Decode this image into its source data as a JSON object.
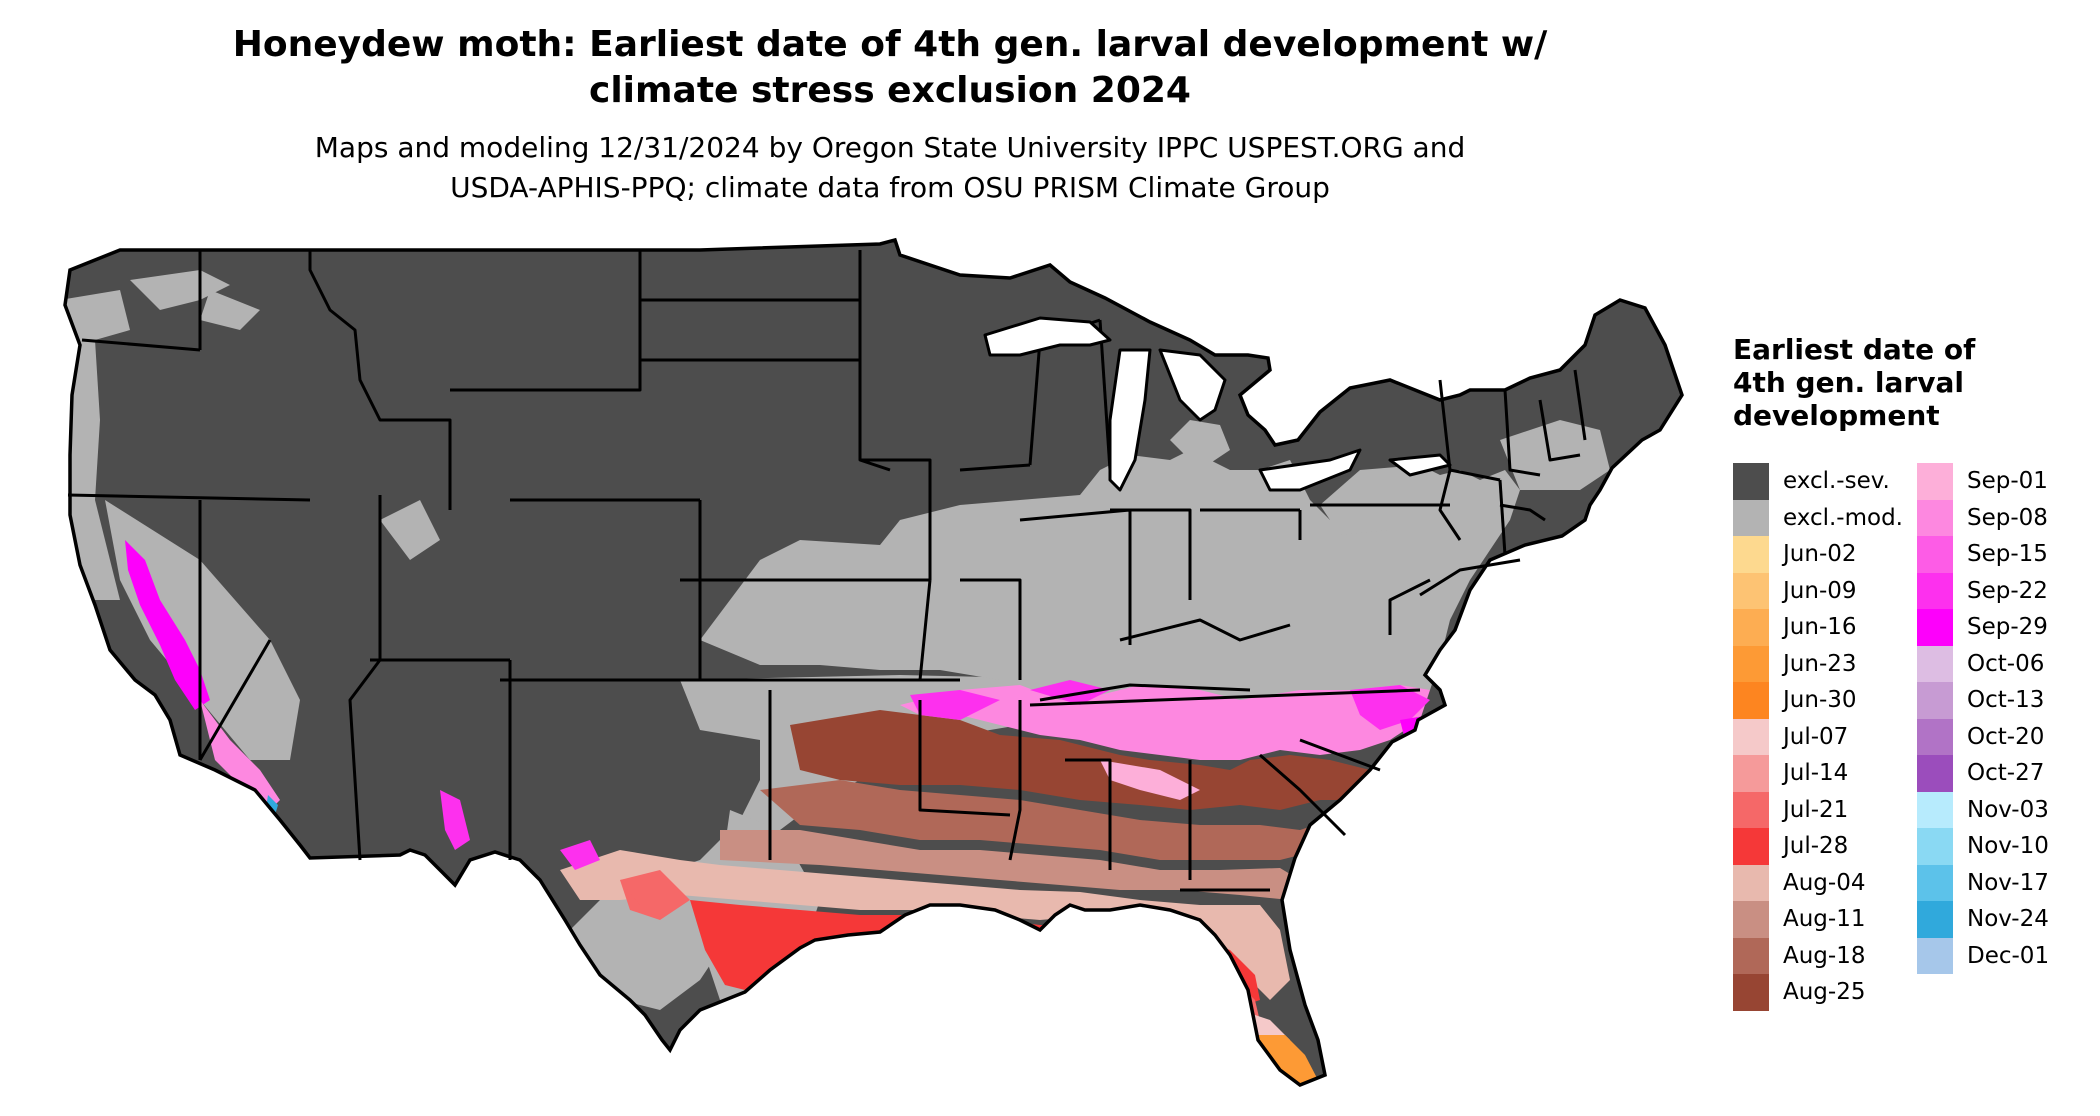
{
  "title": {
    "line1": "Honeydew moth: Earliest date of 4th gen. larval development w/",
    "line2": "climate stress exclusion 2024"
  },
  "subtitle": {
    "line1": "Maps and modeling 12/31/2024 by Oregon State University IPPC USPEST.ORG and",
    "line2": "USDA-APHIS-PPQ; climate data from OSU PRISM Climate Group"
  },
  "legend": {
    "title": "Earliest date of 4th gen. larval development",
    "column1": [
      {
        "label": "excl.-sev.",
        "color": "#4d4d4d"
      },
      {
        "label": "excl.-mod.",
        "color": "#b3b3b3"
      },
      {
        "label": "Jun-02",
        "color": "#fdd98f"
      },
      {
        "label": "Jun-09",
        "color": "#fdc373"
      },
      {
        "label": "Jun-16",
        "color": "#fdad52"
      },
      {
        "label": "Jun-23",
        "color": "#fd9a35"
      },
      {
        "label": "Jun-30",
        "color": "#fd8520"
      },
      {
        "label": "Jul-07",
        "color": "#f5c9c9"
      },
      {
        "label": "Jul-14",
        "color": "#f59a9a"
      },
      {
        "label": "Jul-21",
        "color": "#f56868"
      },
      {
        "label": "Jul-28",
        "color": "#f53838"
      },
      {
        "label": "Aug-04",
        "color": "#e8b9ae"
      },
      {
        "label": "Aug-11",
        "color": "#c98f83"
      },
      {
        "label": "Aug-18",
        "color": "#b06858"
      },
      {
        "label": "Aug-25",
        "color": "#974533"
      }
    ],
    "column2": [
      {
        "label": "Sep-01",
        "color": "#fdafd9"
      },
      {
        "label": "Sep-08",
        "color": "#fd88e0"
      },
      {
        "label": "Sep-15",
        "color": "#fd5ce6"
      },
      {
        "label": "Sep-22",
        "color": "#fd30ee"
      },
      {
        "label": "Sep-29",
        "color": "#fd00fb"
      },
      {
        "label": "Oct-06",
        "color": "#ddbde3"
      },
      {
        "label": "Oct-13",
        "color": "#c79bd3"
      },
      {
        "label": "Oct-20",
        "color": "#b173c6"
      },
      {
        "label": "Oct-27",
        "color": "#9b4dbc"
      },
      {
        "label": "Nov-03",
        "color": "#b7ebfd"
      },
      {
        "label": "Nov-10",
        "color": "#8ad9f3"
      },
      {
        "label": "Nov-17",
        "color": "#5cc2ea"
      },
      {
        "label": "Nov-24",
        "color": "#30a9dc"
      },
      {
        "label": "Dec-01",
        "color": "#a6c7ea"
      }
    ]
  }
}
